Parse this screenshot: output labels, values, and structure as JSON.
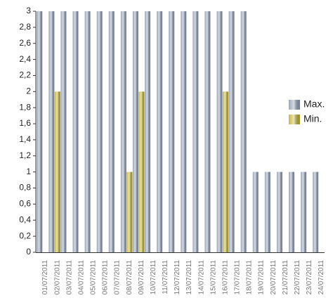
{
  "chart_data": {
    "type": "bar",
    "categories": [
      "01/07/2011",
      "02/07/2011",
      "03/07/2011",
      "04/07/2011",
      "05/07/2011",
      "06/07/2011",
      "07/07/2011",
      "08/07/2011",
      "09/07/2011",
      "10/07/2011",
      "11/07/2011",
      "12/07/2011",
      "13/07/2011",
      "14/07/2011",
      "15/07/2011",
      "16/07/2011",
      "17/07/2011",
      "18/07/2011",
      "19/07/2011",
      "20/07/2011",
      "21/07/2011",
      "22/07/2011",
      "23/07/2011",
      "24/07/2011"
    ],
    "series": [
      {
        "name": "Max.",
        "color": "#8e9db5",
        "values": [
          3,
          3,
          3,
          3,
          3,
          3,
          3,
          3,
          3,
          3,
          3,
          3,
          3,
          3,
          3,
          3,
          3,
          3,
          1,
          1,
          1,
          1,
          1,
          1
        ]
      },
      {
        "name": "Min.",
        "color": "#c2b22a",
        "values": [
          0,
          2,
          0,
          0,
          0,
          0,
          0,
          1,
          2,
          0,
          0,
          0,
          0,
          0,
          0,
          2,
          0,
          0,
          0,
          0,
          0,
          0,
          0,
          0
        ]
      }
    ],
    "ylim": [
      0,
      3
    ],
    "yticks": [
      0,
      {
        "value": 0.2,
        "label": "0,2"
      },
      {
        "value": 0.4,
        "label": "0,4"
      },
      {
        "value": 0.6,
        "label": "0,6"
      },
      {
        "value": 0.8,
        "label": "0,8"
      },
      1,
      {
        "value": 1.2,
        "label": "1,2"
      },
      {
        "value": 1.4,
        "label": "1,4"
      },
      {
        "value": 1.6,
        "label": "1,6"
      },
      {
        "value": 1.8,
        "label": "1,8"
      },
      2,
      {
        "value": 2.2,
        "label": "2,2"
      },
      {
        "value": 2.4,
        "label": "2,4"
      },
      {
        "value": 2.6,
        "label": "2,6"
      },
      {
        "value": 2.8,
        "label": "2,8"
      },
      3
    ],
    "grid": false,
    "legend": "right"
  }
}
